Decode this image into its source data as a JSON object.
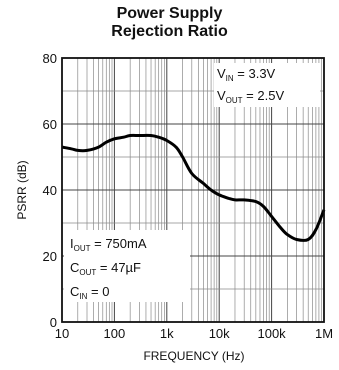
{
  "chart_data": {
    "type": "line",
    "title_line1": "Power Supply",
    "title_line2": "Rejection Ratio",
    "xlabel": "FREQUENCY (Hz)",
    "ylabel": "PSRR (dB)",
    "x_scale": "log",
    "xlim": [
      10,
      1000000
    ],
    "ylim": [
      0,
      80
    ],
    "x_tick_values": [
      10,
      100,
      1000,
      10000,
      100000,
      1000000
    ],
    "x_tick_labels": [
      "10",
      "100",
      "1k",
      "10k",
      "100k",
      "1M"
    ],
    "y_tick_values": [
      0,
      20,
      40,
      60,
      80
    ],
    "y_tick_labels": [
      "0",
      "20",
      "40",
      "60",
      "80"
    ],
    "grid": true,
    "series": [
      {
        "x": [
          10,
          15,
          20,
          30,
          50,
          70,
          100,
          150,
          200,
          300,
          500,
          700,
          1000,
          1500,
          2000,
          3000,
          5000,
          7000,
          10000,
          15000,
          20000,
          30000,
          50000,
          70000,
          100000,
          150000,
          200000,
          300000,
          500000,
          700000,
          1000000
        ],
        "values": [
          53,
          52.5,
          52,
          52,
          53,
          54.5,
          55.5,
          56,
          56.5,
          56.5,
          56.5,
          56,
          55,
          53,
          50,
          45,
          42,
          40,
          38.5,
          37.5,
          37,
          37,
          36.5,
          35,
          32,
          28.5,
          26.5,
          25,
          25,
          28,
          34
        ]
      }
    ],
    "annotation_top": {
      "line1_main": "V",
      "line1_sub": "IN",
      "line1_rest": " = 3.3V",
      "line2_main": "V",
      "line2_sub": "OUT",
      "line2_rest": " = 2.5V"
    },
    "annotation_bottom": {
      "line1_main": "I",
      "line1_sub": "OUT",
      "line1_rest": " = 750mA",
      "line2_main": "C",
      "line2_sub": "OUT",
      "line2_rest": " = 47µF",
      "line3_main": "C",
      "line3_sub": "IN",
      "line3_rest": " = 0"
    }
  }
}
